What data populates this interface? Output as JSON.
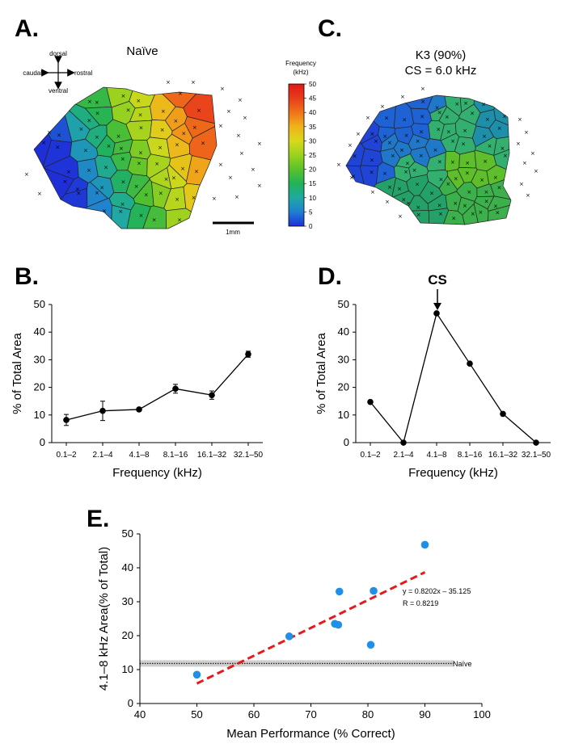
{
  "panels": {
    "A": {
      "label": "A.",
      "title": "Naïve",
      "orientation": {
        "dorsal": "dorsal",
        "ventral": "ventral",
        "caudal": "caudal",
        "rostral": "rostral"
      },
      "scale_bar": "1mm"
    },
    "C": {
      "label": "C.",
      "title_line1": "K3 (90%)",
      "title_line2": "CS = 6.0 kHz"
    },
    "colorbar": {
      "title_line1": "Frequency",
      "title_line2": "(kHz)",
      "ticks": [
        "50",
        "45",
        "40",
        "35",
        "30",
        "25",
        "20",
        "15",
        "10",
        "5",
        "0"
      ],
      "colors": [
        "#1e2fd8",
        "#1f7fd2",
        "#1fa9a2",
        "#22b25a",
        "#59c22a",
        "#9ad21f",
        "#d9d81b",
        "#f0b21a",
        "#f0731a",
        "#e83d1a",
        "#e01818"
      ]
    },
    "B": {
      "label": "B."
    },
    "D": {
      "label": "D.",
      "annotation": "CS"
    },
    "E": {
      "label": "E.",
      "equation": "y = 0.8202x – 35.125",
      "r_value": "R = 0.8219",
      "baseline_label": "Naïve"
    }
  },
  "chart_data": [
    {
      "panel": "B",
      "type": "line",
      "categories": [
        "0.1–2",
        "2.1–4",
        "4.1–8",
        "8.1–16",
        "16.1–32",
        "32.1–50"
      ],
      "values": [
        8.2,
        11.5,
        12,
        19.5,
        17.2,
        32
      ],
      "errors": [
        2,
        3.5,
        0.6,
        1.6,
        1.5,
        1.1
      ],
      "xlabel": "Frequency (kHz)",
      "ylabel": "% of Total Area",
      "ylim": [
        0,
        50
      ],
      "yticks": [
        "0",
        "10",
        "20",
        "30",
        "40",
        "50"
      ],
      "grid": false
    },
    {
      "panel": "D",
      "type": "line",
      "categories": [
        "0.1–2",
        "2.1–4",
        "4.1–8",
        "8.1–16",
        "16.1–32",
        "32.1–50"
      ],
      "values": [
        14.7,
        0,
        46.8,
        28.6,
        10.4,
        0
      ],
      "xlabel": "Frequency (kHz)",
      "ylabel": "% of Total Area",
      "ylim": [
        0,
        50
      ],
      "yticks": [
        "0",
        "10",
        "20",
        "30",
        "40",
        "50"
      ],
      "grid": false
    },
    {
      "panel": "E",
      "type": "scatter",
      "points": [
        [
          50,
          8.5
        ],
        [
          66.2,
          19.8
        ],
        [
          74.2,
          23.5
        ],
        [
          74.8,
          23.2
        ],
        [
          75,
          33
        ],
        [
          80.5,
          17.3
        ],
        [
          81,
          33.2
        ],
        [
          90,
          46.8
        ]
      ],
      "trend": {
        "x": [
          50,
          90
        ],
        "y": [
          5.885,
          38.693
        ]
      },
      "baseline": 11.8,
      "xlabel": "Mean Performance (% Correct)",
      "ylabel": "4.1–8 kHz Area(% of Total)",
      "xlim": [
        40,
        100
      ],
      "ylim": [
        0,
        50
      ],
      "xticks": [
        "40",
        "50",
        "60",
        "70",
        "80",
        "90",
        "100"
      ],
      "yticks": [
        "0",
        "10",
        "20",
        "30",
        "40",
        "50"
      ],
      "grid": false
    }
  ]
}
